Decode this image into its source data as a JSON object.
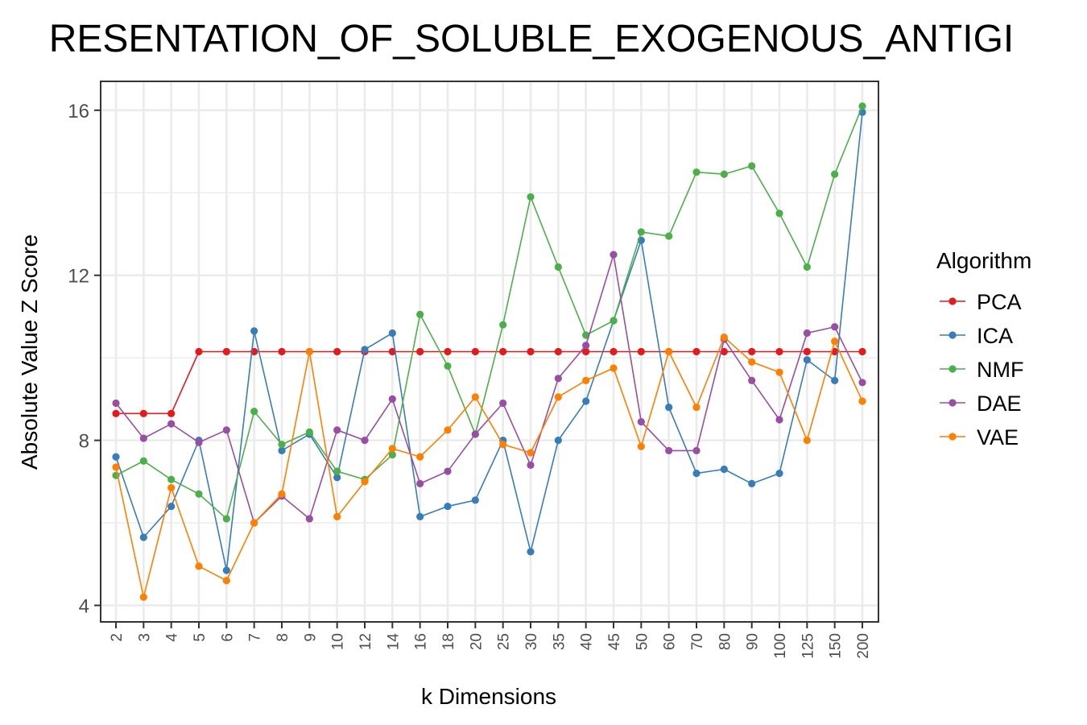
{
  "chart_data": {
    "type": "line",
    "title": "RESENTATION_OF_SOLUBLE_EXOGENOUS_ANTIGI",
    "xlabel": "k Dimensions",
    "ylabel": "Absolute Value Z Score",
    "categories": [
      "2",
      "3",
      "4",
      "5",
      "6",
      "7",
      "8",
      "9",
      "10",
      "12",
      "14",
      "16",
      "18",
      "20",
      "25",
      "30",
      "35",
      "40",
      "45",
      "50",
      "60",
      "70",
      "80",
      "90",
      "100",
      "125",
      "150",
      "200"
    ],
    "ylim": [
      3.6,
      16.7
    ],
    "yticks": [
      "4",
      "8",
      "12",
      "16"
    ],
    "grid": true,
    "legend": {
      "title": "Algorithm",
      "position": "right"
    },
    "series": [
      {
        "name": "PCA",
        "color": "#e41a1c",
        "values": [
          8.65,
          8.65,
          8.65,
          10.15,
          10.15,
          10.15,
          10.15,
          10.15,
          10.15,
          10.15,
          10.15,
          10.15,
          10.15,
          10.15,
          10.15,
          10.15,
          10.15,
          10.15,
          10.15,
          10.15,
          10.15,
          10.15,
          10.15,
          10.15,
          10.15,
          10.15,
          10.15,
          10.15
        ]
      },
      {
        "name": "ICA",
        "color": "#377eb8",
        "values": [
          7.6,
          5.65,
          6.4,
          8.0,
          4.85,
          10.65,
          7.75,
          8.15,
          7.1,
          10.2,
          10.6,
          6.15,
          6.4,
          6.55,
          8.0,
          5.3,
          8.0,
          8.95,
          10.9,
          12.85,
          8.8,
          7.2,
          7.3,
          6.95,
          7.2,
          9.95,
          9.45,
          15.95
        ]
      },
      {
        "name": "NMF",
        "color": "#4daf4a",
        "values": [
          7.15,
          7.5,
          7.05,
          6.7,
          6.1,
          8.7,
          7.9,
          8.2,
          7.25,
          7.05,
          7.65,
          11.05,
          9.8,
          8.15,
          10.8,
          13.9,
          12.2,
          10.55,
          10.9,
          13.05,
          12.95,
          14.5,
          14.45,
          14.65,
          13.5,
          12.2,
          14.45,
          16.1
        ]
      },
      {
        "name": "DAE",
        "color": "#984ea3",
        "values": [
          8.9,
          8.05,
          8.4,
          7.95,
          8.25,
          6.0,
          6.65,
          6.1,
          8.25,
          8.0,
          9.0,
          6.95,
          7.25,
          8.15,
          8.9,
          7.4,
          9.5,
          10.3,
          12.5,
          8.45,
          7.75,
          7.75,
          10.45,
          9.45,
          8.5,
          10.6,
          10.75,
          9.4
        ]
      },
      {
        "name": "VAE",
        "color": "#ff7f00",
        "values": [
          7.35,
          4.2,
          6.85,
          4.95,
          4.6,
          6.0,
          6.7,
          10.15,
          6.15,
          7.0,
          7.8,
          7.6,
          8.25,
          9.05,
          7.9,
          7.7,
          9.05,
          9.45,
          9.75,
          7.85,
          10.15,
          8.8,
          10.5,
          9.9,
          9.65,
          8.0,
          10.4,
          8.95
        ]
      }
    ]
  }
}
